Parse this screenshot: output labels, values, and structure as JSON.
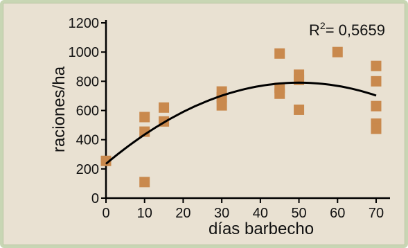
{
  "colors": {
    "background": "#e9e1d2",
    "frame": "#c8d6b4",
    "points": "#c9894d",
    "curve": "#000000",
    "axis": "#000000"
  },
  "chart_data": {
    "type": "scatter",
    "title": "",
    "xlabel": "días barbecho",
    "ylabel": "raciones/ha",
    "xlim": [
      0,
      70
    ],
    "ylim": [
      0,
      1200
    ],
    "xticks": [
      0,
      10,
      20,
      30,
      40,
      50,
      60,
      70
    ],
    "yticks": [
      0,
      200,
      400,
      600,
      800,
      1000,
      1200
    ],
    "grid": false,
    "annotation": {
      "prefix": "R",
      "superscript": "2",
      "text": "= 0,5659"
    },
    "series": [
      {
        "points": [
          {
            "x": 0,
            "y": 255
          },
          {
            "x": 10,
            "y": 555
          },
          {
            "x": 10,
            "y": 455
          },
          {
            "x": 10,
            "y": 110
          },
          {
            "x": 15,
            "y": 620
          },
          {
            "x": 15,
            "y": 525
          },
          {
            "x": 30,
            "y": 730
          },
          {
            "x": 30,
            "y": 690
          },
          {
            "x": 30,
            "y": 635
          },
          {
            "x": 45,
            "y": 990
          },
          {
            "x": 45,
            "y": 755
          },
          {
            "x": 45,
            "y": 715
          },
          {
            "x": 50,
            "y": 845
          },
          {
            "x": 50,
            "y": 810
          },
          {
            "x": 50,
            "y": 605
          },
          {
            "x": 60,
            "y": 1000
          },
          {
            "x": 70,
            "y": 905
          },
          {
            "x": 70,
            "y": 800
          },
          {
            "x": 70,
            "y": 630
          },
          {
            "x": 70,
            "y": 510
          },
          {
            "x": 70,
            "y": 475
          }
        ]
      }
    ],
    "trendline": {
      "type": "quadratic",
      "coefficients": {
        "a": -0.2218,
        "b": 22.2,
        "c": 235
      },
      "x_range": [
        0,
        70
      ]
    }
  }
}
